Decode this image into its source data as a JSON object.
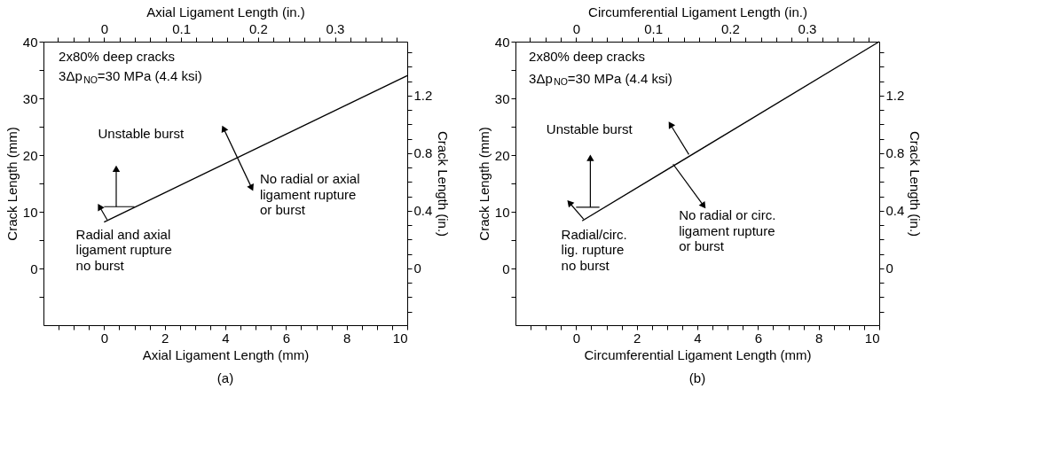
{
  "chart_data": [
    {
      "type": "line",
      "title": "(a)",
      "xlabel": "Axial Ligament Length (mm)",
      "ylabel": "Crack Length (mm)",
      "x2label": "Axial Ligament Length (in.)",
      "y2label": "Crack Length (in.)",
      "series": [
        {
          "color": "#000000",
          "x": [
            0,
            10
          ],
          "values": [
            8.2,
            34
          ]
        }
      ],
      "xlim": [
        -2,
        10
      ],
      "xticks": [
        {
          "value": -1.5,
          "label": null
        },
        {
          "value": -1,
          "label": null
        },
        {
          "value": -0.5,
          "label": null
        },
        0,
        {
          "value": 0.5,
          "label": null
        },
        {
          "value": 1,
          "label": null
        },
        {
          "value": 1.5,
          "label": null
        },
        2,
        {
          "value": 2.5,
          "label": null
        },
        {
          "value": 3,
          "label": null
        },
        {
          "value": 3.5,
          "label": null
        },
        4,
        {
          "value": 4.5,
          "label": null
        },
        {
          "value": 5,
          "label": null
        },
        {
          "value": 5.5,
          "label": null
        },
        6,
        {
          "value": 6.5,
          "label": null
        },
        {
          "value": 7,
          "label": null
        },
        {
          "value": 7.5,
          "label": null
        },
        8,
        {
          "value": 8.5,
          "label": null
        },
        {
          "value": 9,
          "label": null
        },
        {
          "value": 9.5,
          "label": null
        },
        10
      ],
      "ylim": [
        -10,
        40
      ],
      "yticks": [
        {
          "value": -5,
          "label": null
        },
        0,
        {
          "value": 5,
          "label": null
        },
        10,
        {
          "value": 15,
          "label": null
        },
        20,
        {
          "value": 25,
          "label": null
        },
        30,
        {
          "value": 35,
          "label": null
        },
        40
      ],
      "x2lim": [
        -0.079,
        0.394
      ],
      "x2ticks": [
        {
          "value": -0.06,
          "label": null
        },
        {
          "value": -0.04,
          "label": null
        },
        {
          "value": -0.02,
          "label": null
        },
        0,
        {
          "value": 0.02,
          "label": null
        },
        {
          "value": 0.04,
          "label": null
        },
        {
          "value": 0.06,
          "label": null
        },
        {
          "value": 0.08,
          "label": null
        },
        0.1,
        {
          "value": 0.12,
          "label": null
        },
        {
          "value": 0.14,
          "label": null
        },
        {
          "value": 0.16,
          "label": null
        },
        {
          "value": 0.18,
          "label": null
        },
        0.2,
        {
          "value": 0.22,
          "label": null
        },
        {
          "value": 0.24,
          "label": null
        },
        {
          "value": 0.26,
          "label": null
        },
        {
          "value": 0.28,
          "label": null
        },
        0.3,
        {
          "value": 0.32,
          "label": null
        },
        {
          "value": 0.34,
          "label": null
        },
        {
          "value": 0.36,
          "label": null
        },
        {
          "value": 0.38,
          "label": null
        }
      ],
      "y2lim": [
        -0.394,
        1.575
      ],
      "y2ticks": [
        {
          "value": -0.3,
          "label": null
        },
        {
          "value": -0.2,
          "label": null
        },
        {
          "value": -0.1,
          "label": null
        },
        0,
        {
          "value": 0.1,
          "label": null
        },
        {
          "value": 0.2,
          "label": null
        },
        {
          "value": 0.3,
          "label": null
        },
        0.4,
        {
          "value": 0.5,
          "label": null
        },
        {
          "value": 0.6,
          "label": null
        },
        {
          "value": 0.7,
          "label": null
        },
        0.8,
        {
          "value": 0.9,
          "label": null
        },
        {
          "value": 1.0,
          "label": null
        },
        {
          "value": 1.1,
          "label": null
        },
        1.2,
        {
          "value": 1.3,
          "label": null
        },
        {
          "value": 1.4,
          "label": null
        },
        {
          "value": 1.5,
          "label": null
        }
      ],
      "grid": false,
      "marker": "none",
      "line_style": "solid",
      "annotations": [
        "2x80% deep cracks",
        "3Δp$_{NO}$=30 MPa (4.4 ksi)",
        "Unstable burst",
        "Radial and axial\nligament rupture\nno burst",
        "No radial or axial\nligament rupture\nor burst"
      ]
    },
    {
      "type": "line",
      "title": "(b)",
      "xlabel": "Circumferential Ligament Length (mm)",
      "ylabel": "Crack Length (mm)",
      "x2label": "Circumferential Ligament Length (in.)",
      "y2label": "Crack Length (in.)",
      "series": [
        {
          "color": "#000000",
          "x": [
            0.2,
            10
          ],
          "values": [
            8.4,
            40
          ]
        }
      ],
      "xlim": [
        -2,
        10
      ],
      "xticks": [
        {
          "value": -1.5,
          "label": null
        },
        {
          "value": -1,
          "label": null
        },
        {
          "value": -0.5,
          "label": null
        },
        0,
        {
          "value": 0.5,
          "label": null
        },
        {
          "value": 1,
          "label": null
        },
        {
          "value": 1.5,
          "label": null
        },
        2,
        {
          "value": 2.5,
          "label": null
        },
        {
          "value": 3,
          "label": null
        },
        {
          "value": 3.5,
          "label": null
        },
        4,
        {
          "value": 4.5,
          "label": null
        },
        {
          "value": 5,
          "label": null
        },
        {
          "value": 5.5,
          "label": null
        },
        6,
        {
          "value": 6.5,
          "label": null
        },
        {
          "value": 7,
          "label": null
        },
        {
          "value": 7.5,
          "label": null
        },
        8,
        {
          "value": 8.5,
          "label": null
        },
        {
          "value": 9,
          "label": null
        },
        {
          "value": 9.5,
          "label": null
        },
        10
      ],
      "ylim": [
        -10,
        40
      ],
      "yticks": [
        {
          "value": -5,
          "label": null
        },
        0,
        {
          "value": 5,
          "label": null
        },
        10,
        {
          "value": 15,
          "label": null
        },
        20,
        {
          "value": 25,
          "label": null
        },
        30,
        {
          "value": 35,
          "label": null
        },
        40
      ],
      "x2lim": [
        -0.079,
        0.394
      ],
      "x2ticks": [
        {
          "value": -0.06,
          "label": null
        },
        {
          "value": -0.04,
          "label": null
        },
        {
          "value": -0.02,
          "label": null
        },
        0,
        {
          "value": 0.02,
          "label": null
        },
        {
          "value": 0.04,
          "label": null
        },
        {
          "value": 0.06,
          "label": null
        },
        {
          "value": 0.08,
          "label": null
        },
        0.1,
        {
          "value": 0.12,
          "label": null
        },
        {
          "value": 0.14,
          "label": null
        },
        {
          "value": 0.16,
          "label": null
        },
        {
          "value": 0.18,
          "label": null
        },
        0.2,
        {
          "value": 0.22,
          "label": null
        },
        {
          "value": 0.24,
          "label": null
        },
        {
          "value": 0.26,
          "label": null
        },
        {
          "value": 0.28,
          "label": null
        },
        0.3,
        {
          "value": 0.32,
          "label": null
        },
        {
          "value": 0.34,
          "label": null
        },
        {
          "value": 0.36,
          "label": null
        },
        {
          "value": 0.38,
          "label": null
        }
      ],
      "y2lim": [
        -0.394,
        1.575
      ],
      "y2ticks": [
        {
          "value": -0.3,
          "label": null
        },
        {
          "value": -0.2,
          "label": null
        },
        {
          "value": -0.1,
          "label": null
        },
        0,
        {
          "value": 0.1,
          "label": null
        },
        {
          "value": 0.2,
          "label": null
        },
        {
          "value": 0.3,
          "label": null
        },
        0.4,
        {
          "value": 0.5,
          "label": null
        },
        {
          "value": 0.6,
          "label": null
        },
        {
          "value": 0.7,
          "label": null
        },
        0.8,
        {
          "value": 0.9,
          "label": null
        },
        {
          "value": 1.0,
          "label": null
        },
        {
          "value": 1.1,
          "label": null
        },
        1.2,
        {
          "value": 1.3,
          "label": null
        },
        {
          "value": 1.4,
          "label": null
        },
        {
          "value": 1.5,
          "label": null
        }
      ],
      "grid": false,
      "marker": "none",
      "line_style": "solid",
      "annotations": [
        "2x80% deep cracks",
        "3Δp$_{NO}$=30 MPa (4.4 ksi)",
        "Unstable burst",
        "Radial/circ.\nlig. rupture\nno burst",
        "No radial or circ.\nligament rupture\nor burst"
      ]
    }
  ]
}
